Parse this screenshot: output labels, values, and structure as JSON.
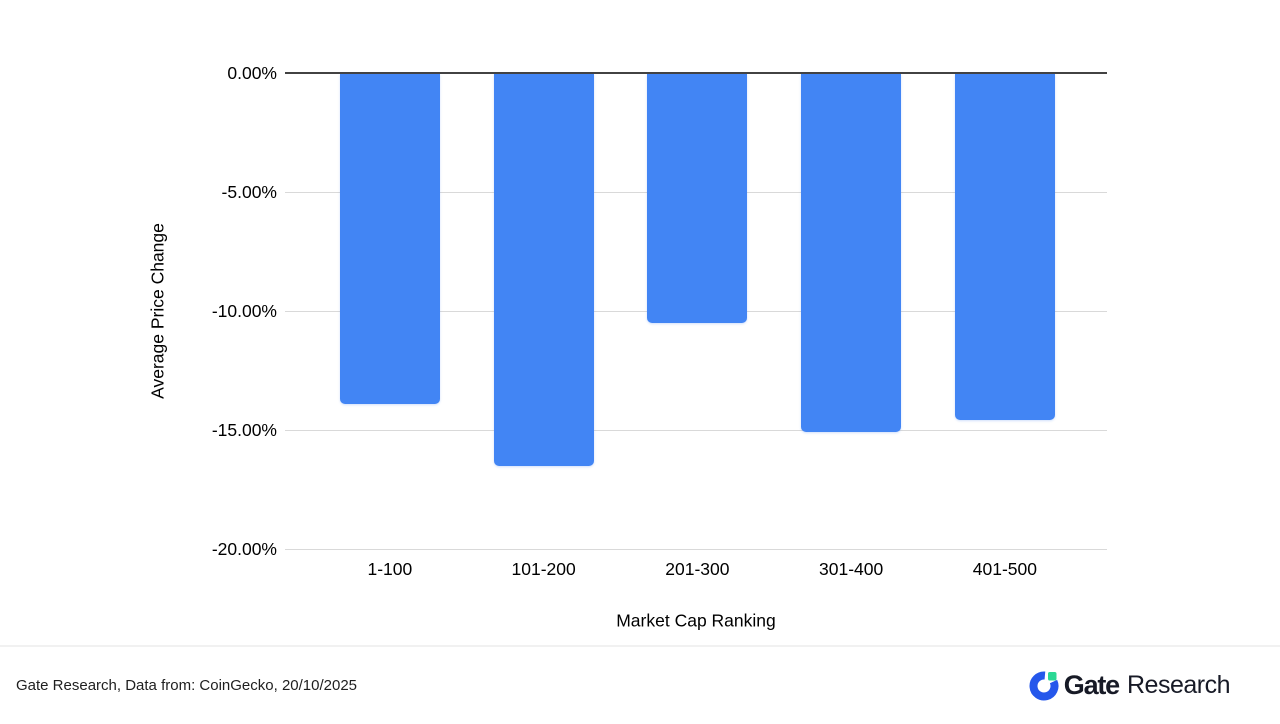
{
  "chart_data": {
    "type": "bar",
    "title": "",
    "categories": [
      "1-100",
      "101-200",
      "201-300",
      "301-400",
      "401-500"
    ],
    "values": [
      -13.9,
      -16.5,
      -10.5,
      -15.1,
      -14.6
    ],
    "xlabel": "Market Cap Ranking",
    "ylabel": "Average Price Change",
    "ylim": [
      -20,
      0
    ],
    "yticks": [
      {
        "value": 0,
        "label": "0.00%"
      },
      {
        "value": -5,
        "label": "-5.00%"
      },
      {
        "value": -10,
        "label": "-10.00%"
      },
      {
        "value": -15,
        "label": "-15.00%"
      },
      {
        "value": -20,
        "label": "-20.00%"
      }
    ],
    "grid": true,
    "legend_position": "none",
    "colors": {
      "bar": "#4285F4",
      "zero_line": "#424242",
      "gridline": "#D9D9D9",
      "tick_text": "#000000",
      "axis_title_text": "#000000"
    }
  },
  "footer": {
    "source_text": "Gate Research, Data from: CoinGecko, 20/10/2025",
    "logo": {
      "brand": "Gate",
      "suffix": "Research",
      "icon": "gate-logo-icon",
      "blue": "#2557EB",
      "green": "#2BD894",
      "text_color": "#171A26"
    }
  }
}
